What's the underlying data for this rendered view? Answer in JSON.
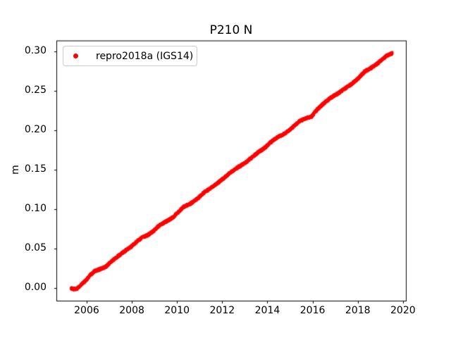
{
  "chart_data": {
    "type": "scatter",
    "title": "P210 N",
    "xlabel": "",
    "ylabel": "m",
    "xlim": [
      2004.66,
      2020.13
    ],
    "ylim": [
      -0.016,
      0.3135
    ],
    "xtick_values": [
      2006,
      2008,
      2010,
      2012,
      2014,
      2016,
      2018,
      2020
    ],
    "xtick_labels": [
      "2006",
      "2008",
      "2010",
      "2012",
      "2014",
      "2016",
      "2018",
      "2020"
    ],
    "ytick_values": [
      0.0,
      0.05,
      0.1,
      0.15,
      0.2,
      0.25,
      0.3
    ],
    "ytick_labels": [
      "0.00",
      "0.05",
      "0.10",
      "0.15",
      "0.20",
      "0.25",
      "0.30"
    ],
    "grid": false,
    "legend": {
      "position": "upper left",
      "entries": [
        {
          "label": "repro2018a (IGS14)",
          "color": "#ff0000",
          "marker": "dot"
        }
      ]
    },
    "series": [
      {
        "name": "repro2018a (IGS14)",
        "color": "#ff0000",
        "marker": "dot",
        "marker_size_px": 2.2,
        "jitter_m": 0.0012,
        "density_points": 2400,
        "points": [
          [
            2005.32,
            -0.0005
          ],
          [
            2005.42,
            -0.0015
          ],
          [
            2005.55,
            -0.001
          ],
          [
            2005.75,
            0.004
          ],
          [
            2005.95,
            0.009
          ],
          [
            2006.15,
            0.016
          ],
          [
            2006.35,
            0.0215
          ],
          [
            2006.6,
            0.024
          ],
          [
            2006.85,
            0.027
          ],
          [
            2007.1,
            0.034
          ],
          [
            2007.4,
            0.0405
          ],
          [
            2007.7,
            0.047
          ],
          [
            2007.95,
            0.052
          ],
          [
            2008.2,
            0.0585
          ],
          [
            2008.45,
            0.064
          ],
          [
            2008.7,
            0.067
          ],
          [
            2008.95,
            0.072
          ],
          [
            2009.2,
            0.079
          ],
          [
            2009.5,
            0.084
          ],
          [
            2009.8,
            0.089
          ],
          [
            2010.05,
            0.096
          ],
          [
            2010.3,
            0.103
          ],
          [
            2010.6,
            0.107
          ],
          [
            2010.9,
            0.113
          ],
          [
            2011.2,
            0.121
          ],
          [
            2011.5,
            0.127
          ],
          [
            2011.8,
            0.133
          ],
          [
            2012.1,
            0.14
          ],
          [
            2012.4,
            0.147
          ],
          [
            2012.7,
            0.153
          ],
          [
            2013.0,
            0.158
          ],
          [
            2013.3,
            0.165
          ],
          [
            2013.6,
            0.172
          ],
          [
            2013.9,
            0.178
          ],
          [
            2014.2,
            0.186
          ],
          [
            2014.5,
            0.192
          ],
          [
            2014.8,
            0.196
          ],
          [
            2015.1,
            0.203
          ],
          [
            2015.4,
            0.211
          ],
          [
            2015.7,
            0.215
          ],
          [
            2015.95,
            0.217
          ],
          [
            2016.2,
            0.226
          ],
          [
            2016.5,
            0.234
          ],
          [
            2016.8,
            0.241
          ],
          [
            2017.1,
            0.246
          ],
          [
            2017.4,
            0.252
          ],
          [
            2017.7,
            0.258
          ],
          [
            2018.0,
            0.265
          ],
          [
            2018.3,
            0.274
          ],
          [
            2018.6,
            0.279
          ],
          [
            2018.9,
            0.285
          ],
          [
            2019.1,
            0.29
          ],
          [
            2019.3,
            0.2945
          ],
          [
            2019.52,
            0.2975
          ]
        ]
      }
    ]
  }
}
